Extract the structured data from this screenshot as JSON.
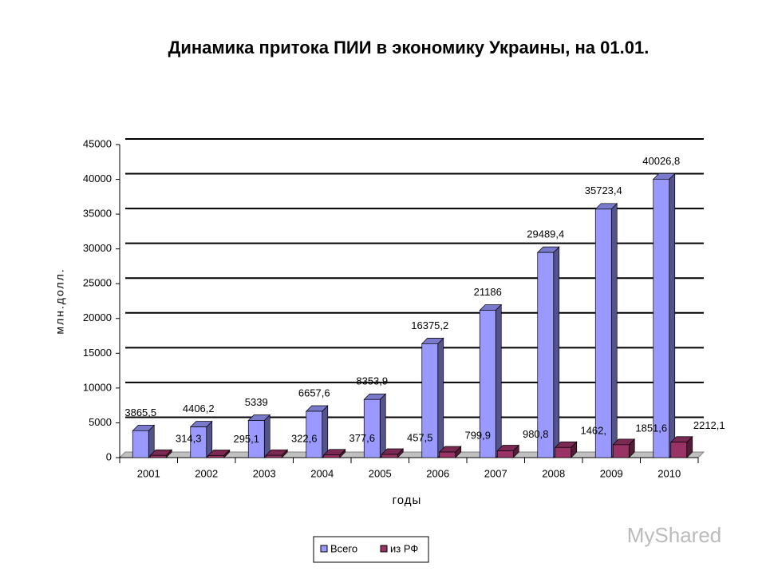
{
  "chart_data": {
    "type": "bar3d",
    "title": "Динамика притока ПИИ в экономику Украины, на 01.01.",
    "y_label": "млн.долл.",
    "x_label": "годы",
    "categories": [
      "2001",
      "2002",
      "2003",
      "2004",
      "2005",
      "2006",
      "2007",
      "2008",
      "2009",
      "2010"
    ],
    "series": [
      {
        "name": "Всего",
        "color": "#9999ff",
        "values": [
          3865.5,
          4406.2,
          5339,
          6657.6,
          8353.9,
          16375.2,
          21186,
          29489.4,
          35723.4,
          40026.8
        ],
        "value_labels": [
          "3865,5",
          "4406,2",
          "5339",
          "6657,6",
          "8353,9",
          "16375,2",
          "21186",
          "29489,4",
          "35723,4",
          "40026,8"
        ]
      },
      {
        "name": "из РФ",
        "color": "#993366",
        "values": [
          314.3,
          295.1,
          322.6,
          377.6,
          457.5,
          799.9,
          980.8,
          1462,
          1851.6,
          2212.1
        ],
        "value_labels": [
          "314,3",
          "295,1",
          "322,6",
          "377,6",
          "457,5",
          "799,9",
          "980,8",
          "1462,",
          "1851,6",
          "2212,1"
        ]
      }
    ],
    "ylim": [
      0,
      45000
    ],
    "yticks": [
      0,
      5000,
      10000,
      15000,
      20000,
      25000,
      30000,
      35000,
      40000,
      45000
    ],
    "grid": true,
    "watermark": "MyShared"
  }
}
